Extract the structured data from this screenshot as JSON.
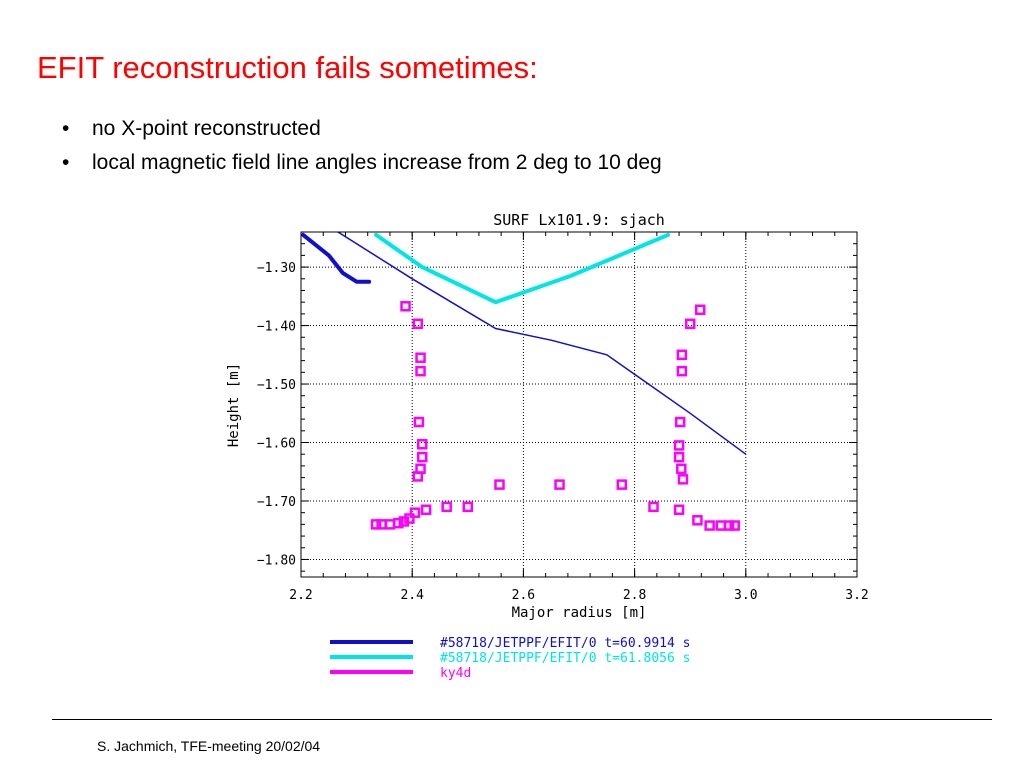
{
  "slide": {
    "title": "EFIT reconstruction fails sometimes:",
    "title_color": "#ff0000",
    "bullets": [
      "no X-point reconstructed",
      "local magnetic field line angles increase from 2 deg to 10 deg"
    ],
    "footer": "S. Jachmich, TFE-meeting 20/02/04"
  },
  "chart_data": {
    "type": "line",
    "title": "SURF Lx101.9: sjach",
    "xlabel": "Major radius [m]",
    "ylabel": "Height [m]",
    "xlim": [
      2.2,
      3.2
    ],
    "ylim": [
      -1.83,
      -1.24
    ],
    "xticks": [
      "2.2",
      "2.4",
      "2.6",
      "2.8",
      "3.0",
      "3.2"
    ],
    "xtick_values": [
      2.2,
      2.4,
      2.6,
      2.8,
      3.0,
      3.2
    ],
    "yticks": [
      "−1.30",
      "−1.40",
      "−1.50",
      "−1.60",
      "−1.70",
      "−1.80"
    ],
    "ytick_values": [
      -1.3,
      -1.4,
      -1.5,
      -1.6,
      -1.7,
      -1.8
    ],
    "grid": true,
    "legend_position": "bottom",
    "series": [
      {
        "name": "#58718/JETPPF/EFIT/0 t=60.9914 s",
        "color": "#1010cc",
        "style": "thick",
        "x": [
          2.204,
          2.25,
          2.275,
          2.3,
          2.3225
        ],
        "y": [
          -1.245,
          -1.28,
          -1.31,
          -1.325,
          -1.325
        ]
      },
      {
        "name": "#58718/JETPPF/EFIT/0 t=61.8056 s",
        "color": "#00e5e5",
        "style": "thick",
        "x": [
          2.335,
          2.418,
          2.55,
          2.685,
          2.86
        ],
        "y": [
          -1.245,
          -1.3,
          -1.36,
          -1.315,
          -1.245
        ]
      },
      {
        "name": "ky4d",
        "color": "#ff00ff",
        "style": "markers",
        "x": [
          2.388,
          2.41,
          2.415,
          2.415,
          2.412,
          2.418,
          2.418,
          2.415,
          2.41,
          2.405,
          2.395,
          2.385,
          2.375,
          2.36,
          2.345,
          2.335,
          2.425,
          2.462,
          2.5,
          2.557,
          2.665,
          2.777,
          2.834,
          2.88,
          2.913,
          2.935,
          2.955,
          2.97,
          2.98,
          2.918,
          2.9,
          2.885,
          2.885,
          2.882,
          2.88,
          2.88,
          2.884,
          2.887
        ],
        "y": [
          -1.367,
          -1.397,
          -1.455,
          -1.478,
          -1.565,
          -1.603,
          -1.625,
          -1.645,
          -1.658,
          -1.72,
          -1.73,
          -1.735,
          -1.738,
          -1.74,
          -1.74,
          -1.74,
          -1.715,
          -1.71,
          -1.71,
          -1.672,
          -1.672,
          -1.672,
          -1.71,
          -1.715,
          -1.733,
          -1.742,
          -1.742,
          -1.742,
          -1.742,
          -1.373,
          -1.397,
          -1.45,
          -1.478,
          -1.565,
          -1.605,
          -1.625,
          -1.645,
          -1.663
        ]
      }
    ],
    "other_lines": [
      {
        "color": "#1010cc",
        "style": "thin",
        "x": [
          2.25,
          2.4,
          2.55,
          2.65,
          2.75,
          2.9,
          3.0
        ],
        "y": [
          -1.23,
          -1.32,
          -1.405,
          -1.425,
          -1.45,
          -1.55,
          -1.62
        ]
      }
    ]
  }
}
